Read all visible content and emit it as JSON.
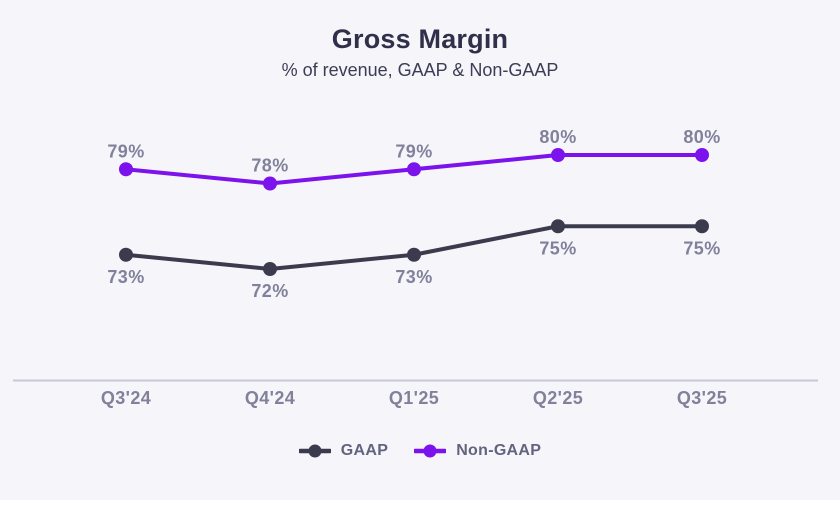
{
  "header": {
    "title": "Gross Margin",
    "subtitle": "% of revenue, GAAP & Non-GAAP"
  },
  "colors": {
    "background": "#f5f5fa",
    "title": "#30304a",
    "subtitle": "#3c3c55",
    "data_label": "#81819b",
    "axis_label": "#81819b",
    "legend_label": "#63637f",
    "axis_line": "#c8c8d6",
    "footer_strip": "#ffffff"
  },
  "chart_data": {
    "type": "line",
    "title": "Gross Margin",
    "subtitle": "% of revenue, GAAP & Non-GAAP",
    "unit": "%",
    "categories": [
      "Q3'24",
      "Q4'24",
      "Q1'25",
      "Q2'25",
      "Q3'25"
    ],
    "series": [
      {
        "name": "GAAP",
        "color": "#3b3b4d",
        "values": [
          73,
          72,
          73,
          75,
          75
        ],
        "data_label_position": "below"
      },
      {
        "name": "Non-GAAP",
        "color": "#7c12ec",
        "values": [
          79,
          78,
          79,
          80,
          80
        ],
        "data_label_position": "above"
      }
    ],
    "ylim": [
      64,
      84
    ],
    "grid": false,
    "y_axis_visible": false,
    "data_labels_visible": true,
    "legend_position": "bottom"
  }
}
